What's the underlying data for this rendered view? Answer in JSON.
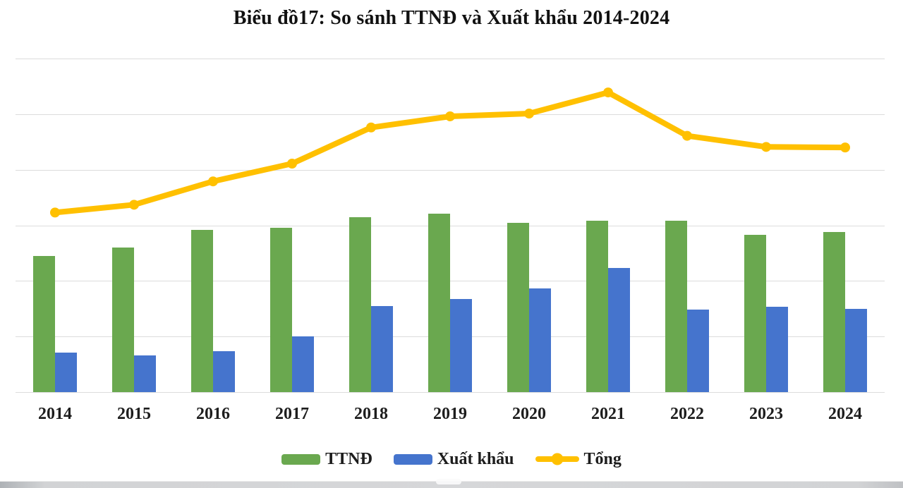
{
  "title": "Biểu đồ17: So sánh TTNĐ và Xuất khẩu 2014-2024",
  "colors": {
    "ttnd_green": "#6aa84f",
    "xuatkhau_blue": "#4574cd",
    "tong_amber": "#ffc000",
    "gridline": "#dcdcdc",
    "text": "#1d1d1d",
    "background": "#ffffff",
    "window_edge_gray": "#d2d3d5"
  },
  "chart_data": {
    "type": "combo-bar-line",
    "title": "Biểu đồ17: So sánh TTNĐ và Xuất khẩu 2014-2024",
    "categories": [
      "2014",
      "2015",
      "2016",
      "2017",
      "2018",
      "2019",
      "2020",
      "2021",
      "2022",
      "2023",
      "2024"
    ],
    "series": [
      {
        "name": "TTNĐ",
        "type": "bar",
        "color": "#6aa84f",
        "values": [
          2.45,
          2.6,
          2.92,
          2.96,
          3.14,
          3.21,
          3.05,
          3.08,
          3.08,
          2.83,
          2.88
        ]
      },
      {
        "name": "Xuất khẩu",
        "type": "bar",
        "color": "#4574cd",
        "values": [
          0.71,
          0.66,
          0.74,
          1.0,
          1.55,
          1.67,
          1.87,
          2.23,
          1.48,
          1.53,
          1.5
        ]
      },
      {
        "name": "Tổng",
        "type": "line",
        "color": "#ffc000",
        "values": [
          3.23,
          3.37,
          3.79,
          4.11,
          4.76,
          4.96,
          5.01,
          5.39,
          4.61,
          4.41,
          4.4
        ]
      }
    ],
    "xlabel": "",
    "ylabel": "",
    "ylim": [
      0,
      6
    ],
    "y_axis_labels_visible": false,
    "grid": true,
    "gridline_count": 7,
    "legend_position": "bottom",
    "value_note": "y-axis has no tick labels; values estimated in gridline units (1 unit = one gridline interval)"
  },
  "legend": {
    "items": [
      {
        "label": "TTNĐ",
        "swatch": "green-bar-swatch"
      },
      {
        "label": "Xuất khẩu",
        "swatch": "blue-bar-swatch"
      },
      {
        "label": "Tổng",
        "swatch": "amber-line-marker-swatch"
      }
    ]
  }
}
